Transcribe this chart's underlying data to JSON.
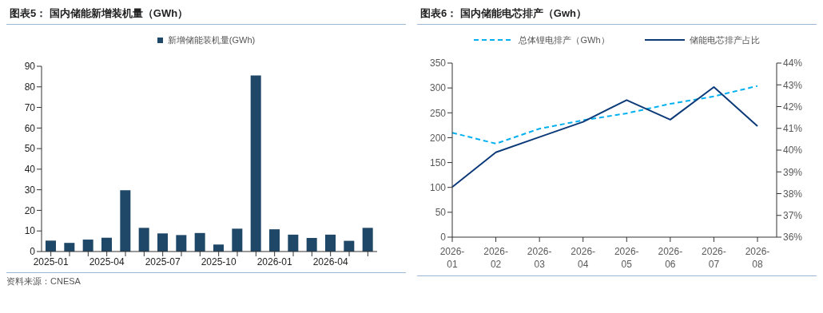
{
  "chart_data": [
    {
      "type": "bar",
      "title": "图表5： 国内储能新增装机量（GWh）",
      "categories": [
        "2025-01",
        null,
        null,
        "2025-04",
        null,
        null,
        "2025-07",
        null,
        null,
        "2025-10",
        null,
        null,
        "2026-01",
        null,
        null,
        "2026-04",
        null,
        null
      ],
      "series": [
        {
          "name": "新增储能装机量(GWh)",
          "color": "#1f4868",
          "values": [
            5.3,
            4.2,
            5.8,
            6.7,
            29.8,
            11.5,
            8.8,
            8.0,
            9.0,
            3.4,
            11.1,
            85.5,
            10.8,
            8.2,
            6.6,
            8.2,
            5.2,
            11.5
          ]
        }
      ],
      "ylim": [
        0,
        90
      ],
      "yticks": [
        0,
        10,
        20,
        30,
        40,
        50,
        60,
        70,
        80,
        90
      ],
      "grid": false,
      "legend": "top",
      "annotations": [
        "资料来源：CNESA"
      ]
    },
    {
      "type": "line",
      "title": "图表6： 国内储能电芯排产（Gwh）",
      "categories": [
        "2026-01",
        "2026-02",
        "2026-03",
        "2026-04",
        "2026-05",
        "2026-06",
        "2026-07",
        "2026-08"
      ],
      "series": [
        {
          "name": "总体锂电排产（GWh）",
          "color": "#00b0f0",
          "line_style": "dashed",
          "values": [
            210,
            188,
            218,
            235,
            249,
            268,
            283,
            304
          ]
        },
        {
          "name": "储能电芯排产占比",
          "color": "#0c3a78",
          "line_style": "solid",
          "axis": "y2",
          "values": [
            38.3,
            39.9,
            40.6,
            41.3,
            42.3,
            41.4,
            42.9,
            41.1
          ]
        }
      ],
      "ylim": [
        0,
        350
      ],
      "yticks": [
        0,
        50,
        100,
        150,
        200,
        250,
        300,
        350
      ],
      "y2lim": [
        36,
        44
      ],
      "y2ticks": [
        {
          "value": 36,
          "label": "36%"
        },
        {
          "value": 37,
          "label": "37%"
        },
        {
          "value": 38,
          "label": "38%"
        },
        {
          "value": 39,
          "label": "39%"
        },
        {
          "value": 40,
          "label": "40%"
        },
        {
          "value": 41,
          "label": "41%"
        },
        {
          "value": 42,
          "label": "42%"
        },
        {
          "value": 43,
          "label": "43%"
        },
        {
          "value": 44,
          "label": "44%"
        }
      ],
      "grid": false,
      "legend": "top"
    }
  ]
}
